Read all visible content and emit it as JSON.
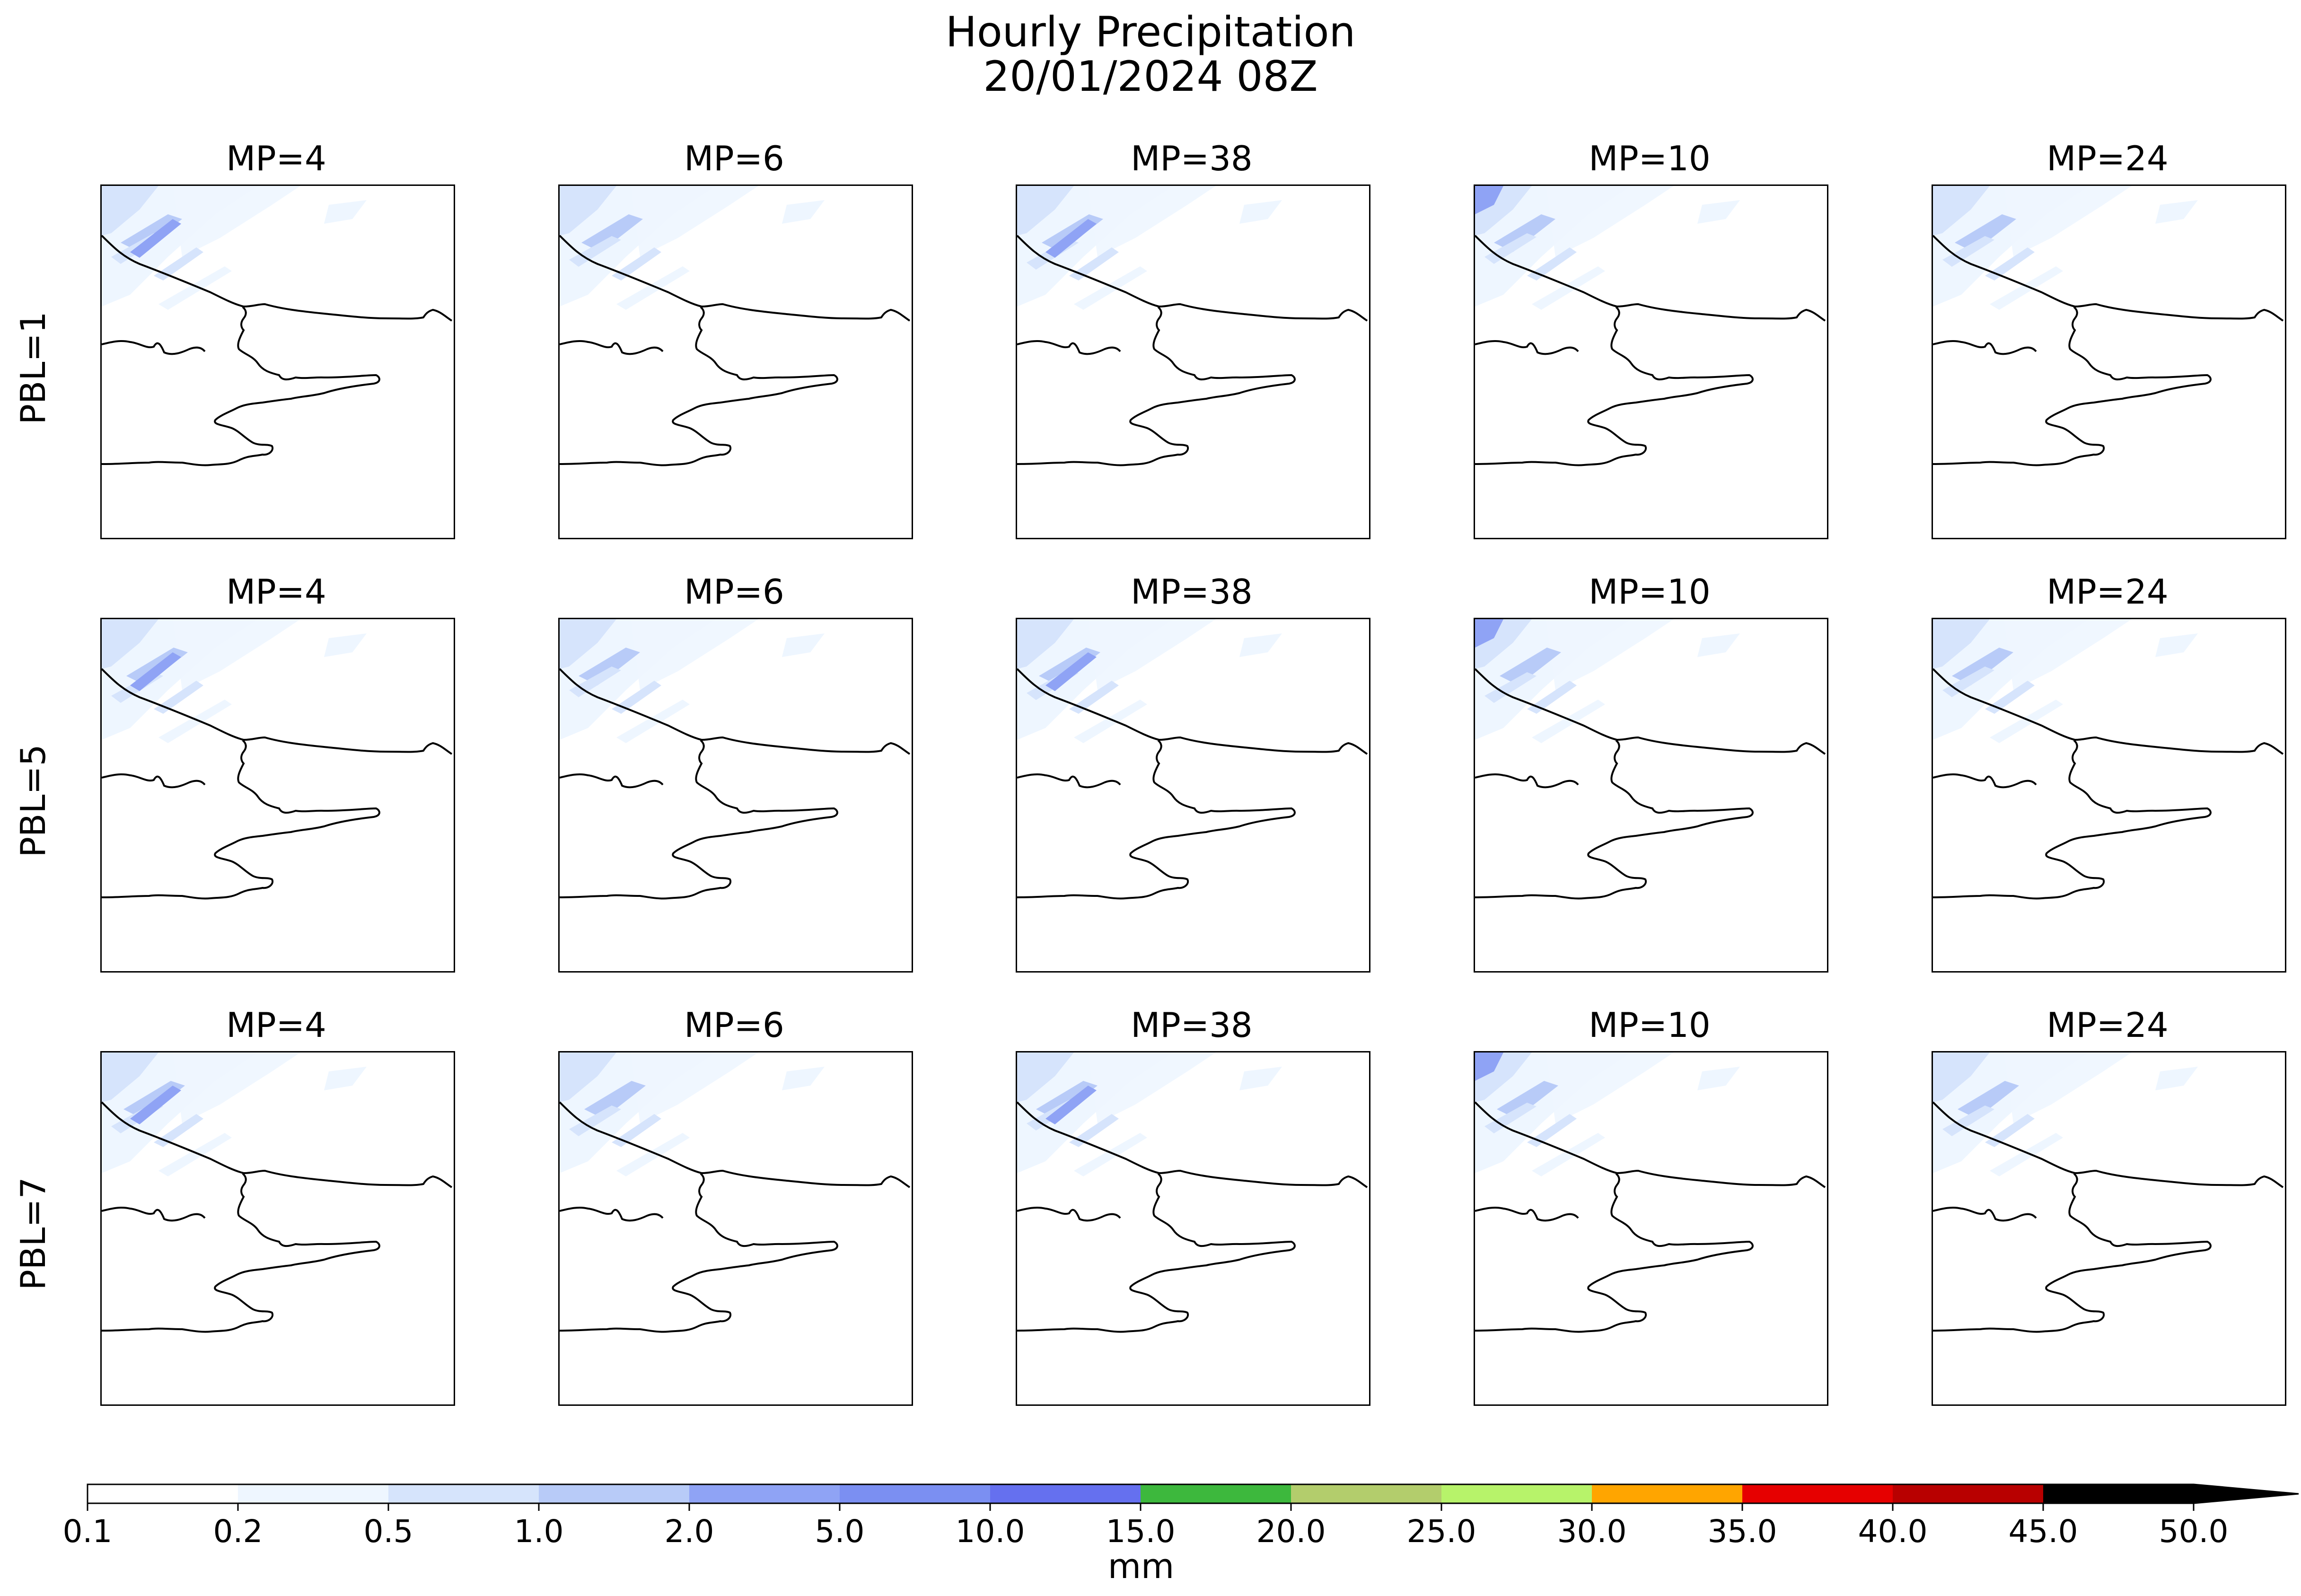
{
  "figure": {
    "title_line1": "Hourly Precipitation",
    "title_line2": "20/01/2024 08Z"
  },
  "grid": {
    "columns": [
      "MP=4",
      "MP=6",
      "MP=38",
      "MP=10",
      "MP=24"
    ],
    "rows": [
      "PBL=1",
      "PBL=5",
      "PBL=7"
    ]
  },
  "colorbar": {
    "label": "mm",
    "ticks": [
      "0.1",
      "0.2",
      "0.5",
      "1.0",
      "2.0",
      "5.0",
      "10.0",
      "15.0",
      "20.0",
      "25.0",
      "30.0",
      "35.0",
      "40.0",
      "45.0",
      "50.0"
    ],
    "colors": [
      "#ffffff",
      "#eef6ff",
      "#d6e4fc",
      "#b8cbf8",
      "#8fa3f5",
      "#7b8ff2",
      "#6570ef",
      "#3db83d",
      "#b3cd6c",
      "#b7f36a",
      "#ffa500",
      "#e60000",
      "#b80000",
      "#000000"
    ],
    "extend_color": "#000000"
  },
  "colors": {
    "coast": "#000000",
    "precip_light": "#eef6ff",
    "precip_mid": "#d6e4fc",
    "precip_strong": "#b8cbf8",
    "precip_heavy": "#8fa3f5"
  }
}
